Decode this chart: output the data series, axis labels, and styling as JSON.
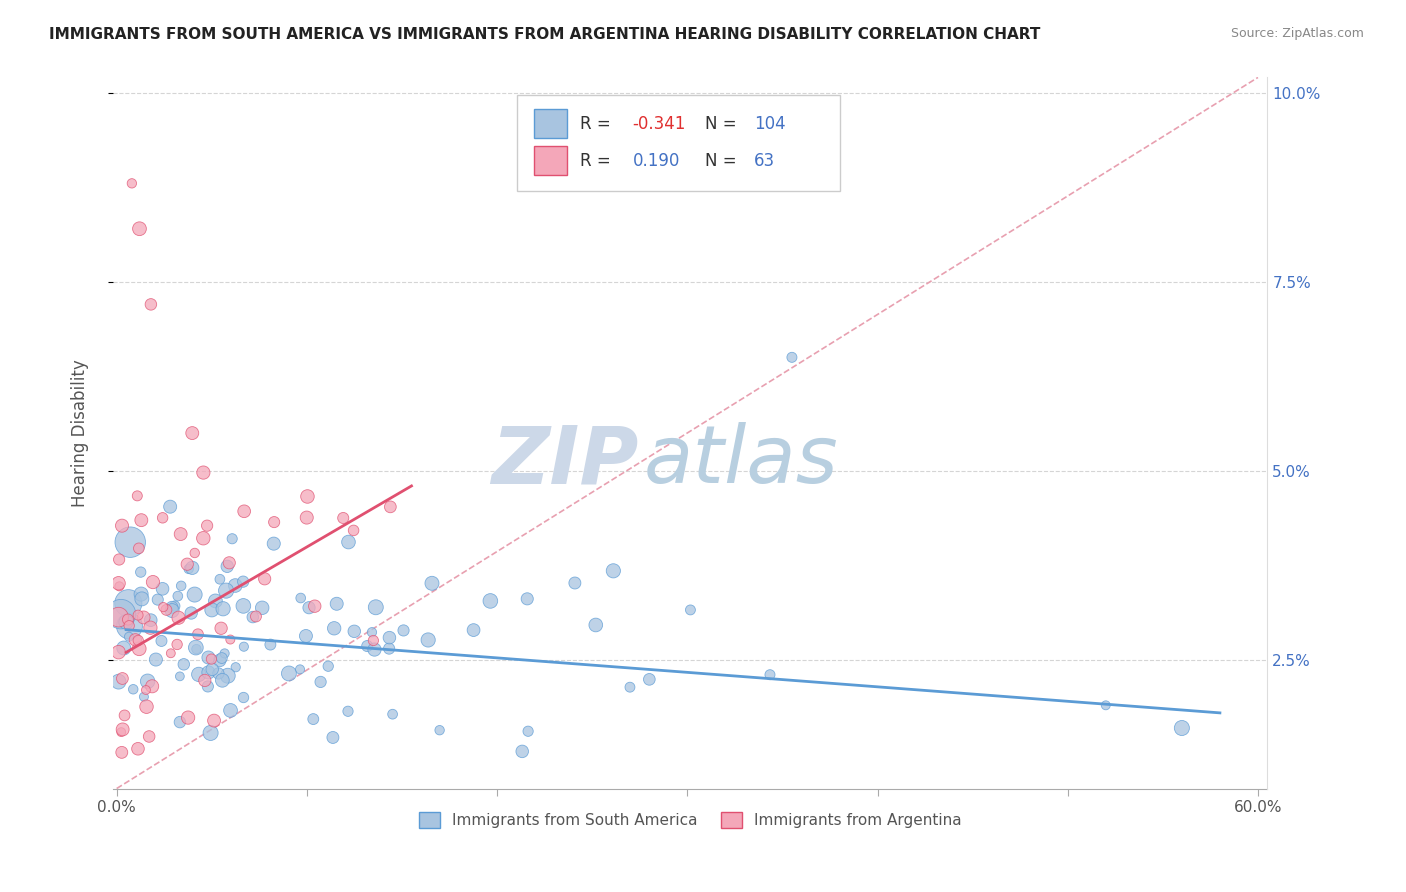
{
  "title": "IMMIGRANTS FROM SOUTH AMERICA VS IMMIGRANTS FROM ARGENTINA HEARING DISABILITY CORRELATION CHART",
  "source": "Source: ZipAtlas.com",
  "ylabel": "Hearing Disability",
  "legend_label1": "Immigrants from South America",
  "legend_label2": "Immigrants from Argentina",
  "r1": -0.341,
  "n1": 104,
  "r2": 0.19,
  "n2": 63,
  "color1": "#a8c4e0",
  "color2": "#f4a7b9",
  "line1_color": "#5b9bd5",
  "line2_color": "#e05070",
  "diag_color": "#e8a0b0",
  "xmin": 0.0,
  "xmax": 0.6,
  "ymin": 0.008,
  "ymax": 0.102,
  "x_ticks": [
    0.0,
    0.1,
    0.2,
    0.3,
    0.4,
    0.5,
    0.6
  ],
  "x_tick_labels": [
    "0.0%",
    "",
    "",
    "",
    "",
    "",
    "60.0%"
  ],
  "y_ticks": [
    0.025,
    0.05,
    0.075,
    0.1
  ],
  "y_tick_labels": [
    "2.5%",
    "5.0%",
    "7.5%",
    "10.0%"
  ],
  "background_color": "#ffffff",
  "watermark_zip": "ZIP",
  "watermark_atlas": "atlas",
  "dot_size": 120
}
